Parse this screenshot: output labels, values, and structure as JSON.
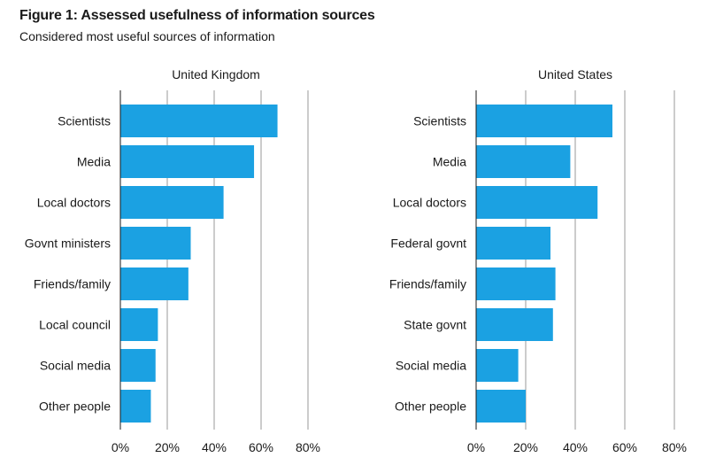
{
  "title": "Figure 1: Assessed usefulness of information sources",
  "subtitle": "Considered most useful sources of information",
  "colors": {
    "bar": "#1ba1e2",
    "grid": "#9a9a9a",
    "text": "#1a1a1a"
  },
  "chart_data": [
    {
      "type": "bar",
      "orientation": "horizontal",
      "title": "United Kingdom",
      "categories": [
        "Scientists",
        "Media",
        "Local doctors",
        "Govnt ministers",
        "Friends/family",
        "Local council",
        "Social media",
        "Other people"
      ],
      "values": [
        67,
        57,
        44,
        30,
        29,
        16,
        15,
        13
      ],
      "xlim": [
        0,
        80
      ],
      "xticks": [
        0,
        20,
        40,
        60,
        80
      ],
      "xtick_labels": [
        "0%",
        "20%",
        "40%",
        "60%",
        "80%"
      ],
      "grid": true
    },
    {
      "type": "bar",
      "orientation": "horizontal",
      "title": "United States",
      "categories": [
        "Scientists",
        "Media",
        "Local doctors",
        "Federal govnt",
        "Friends/family",
        "State govnt",
        "Social media",
        "Other people"
      ],
      "values": [
        55,
        38,
        49,
        30,
        32,
        31,
        17,
        20
      ],
      "xlim": [
        0,
        80
      ],
      "xticks": [
        0,
        20,
        40,
        60,
        80
      ],
      "xtick_labels": [
        "0%",
        "20%",
        "40%",
        "60%",
        "80%"
      ],
      "grid": true
    }
  ]
}
